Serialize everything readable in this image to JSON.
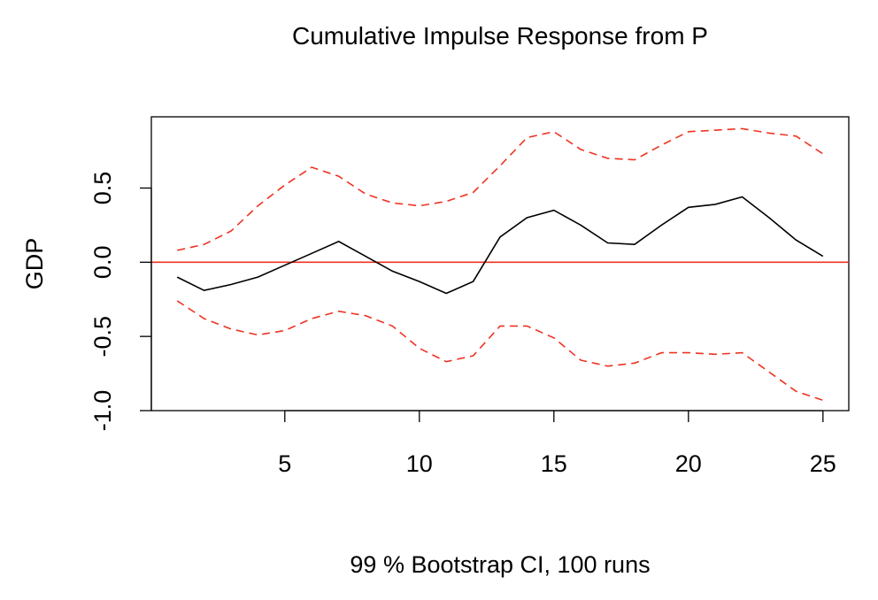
{
  "chart_data": {
    "type": "line",
    "title": "Cumulative Impulse Response from P",
    "xlabel": "99 % Bootstrap CI,  100 runs",
    "ylabel": "GDP",
    "xlim": [
      0.04,
      25.96
    ],
    "ylim": [
      -1.0,
      0.98
    ],
    "x_ticks": [
      5,
      10,
      15,
      20,
      25
    ],
    "x_tick_labels": [
      "5",
      "10",
      "15",
      "20",
      "25"
    ],
    "y_ticks": [
      -1.0,
      -0.5,
      0.0,
      0.5
    ],
    "y_tick_labels": [
      "-1.0",
      "-0.5",
      "0.0",
      "0.5"
    ],
    "grid": false,
    "legend": "none",
    "x": [
      1,
      2,
      3,
      4,
      5,
      6,
      7,
      8,
      9,
      10,
      11,
      12,
      13,
      14,
      15,
      16,
      17,
      18,
      19,
      20,
      21,
      22,
      23,
      24,
      25
    ],
    "series": [
      {
        "role": "response",
        "color": "#000000",
        "dash": "solid",
        "values": [
          -0.1,
          -0.19,
          -0.15,
          -0.1,
          -0.02,
          0.06,
          0.14,
          0.04,
          -0.06,
          -0.13,
          -0.21,
          -0.13,
          0.17,
          0.3,
          0.35,
          0.25,
          0.13,
          0.12,
          0.25,
          0.37,
          0.39,
          0.44,
          0.3,
          0.15,
          0.04
        ]
      },
      {
        "role": "upper",
        "color": "#ee3322",
        "dash": "dashed",
        "values": [
          0.08,
          0.12,
          0.21,
          0.38,
          0.52,
          0.64,
          0.58,
          0.46,
          0.4,
          0.38,
          0.41,
          0.47,
          0.65,
          0.84,
          0.88,
          0.76,
          0.7,
          0.69,
          0.79,
          0.88,
          0.89,
          0.9,
          0.87,
          0.85,
          0.73
        ]
      },
      {
        "role": "lower",
        "color": "#ee3322",
        "dash": "dashed",
        "values": [
          -0.26,
          -0.38,
          -0.45,
          -0.49,
          -0.46,
          -0.38,
          -0.33,
          -0.36,
          -0.43,
          -0.58,
          -0.67,
          -0.63,
          -0.43,
          -0.43,
          -0.51,
          -0.66,
          -0.7,
          -0.68,
          -0.61,
          -0.61,
          -0.62,
          -0.61,
          -0.74,
          -0.87,
          -0.93
        ]
      }
    ],
    "reference_line": {
      "y": 0,
      "color": "#ee3322"
    }
  }
}
